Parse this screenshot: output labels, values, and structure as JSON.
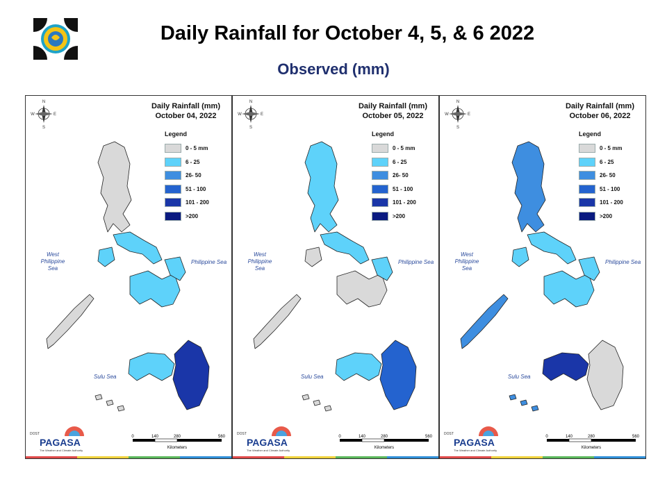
{
  "header": {
    "title": "Daily Rainfall for October 4, 5, & 6 2022",
    "subtitle": "Observed (mm)"
  },
  "legend": {
    "title": "Legend",
    "items": [
      {
        "label": "0 - 5 mm",
        "color": "#d9d9d9"
      },
      {
        "label": "6 - 25",
        "color": "#5ed2fa"
      },
      {
        "label": "26- 50",
        "color": "#3e8ee0"
      },
      {
        "label": "51 - 100",
        "color": "#2463cf"
      },
      {
        "label": "101 - 200",
        "color": "#1a36a8"
      },
      {
        "label": ">200",
        "color": "#0a1a80"
      }
    ]
  },
  "seas": {
    "west": "West Philippine Sea",
    "east": "Philippine Sea",
    "sulu": "Sulu Sea"
  },
  "compass": {
    "n": "N",
    "s": "S",
    "e": "E",
    "w": "W"
  },
  "scale": {
    "ticks": [
      "0",
      "140",
      "280",
      "560"
    ],
    "unit": "Kilometers"
  },
  "branding": {
    "agency": "PAGASA",
    "small": "DOST",
    "tagline": "The Weather and Climate Authority"
  },
  "panels": [
    {
      "title": "Daily Rainfall (mm)",
      "date": "October 04, 2022",
      "rain_levels": {
        "luzon": "0 - 5 mm",
        "bicol": "6 - 25",
        "visayas": "6 - 25",
        "mindanao_west": "6 - 25",
        "mindanao_east": "101 - 200",
        "palawan": "0 - 5 mm"
      }
    },
    {
      "title": "Daily Rainfall (mm)",
      "date": "October 05, 2022",
      "rain_levels": {
        "luzon": "6 - 25",
        "bicol": "6 - 25",
        "visayas": "0 - 5 mm",
        "mindanao_west": "6 - 25",
        "mindanao_east": "51 - 100",
        "palawan": "0 - 5 mm"
      }
    },
    {
      "title": "Daily Rainfall (mm)",
      "date": "October 06, 2022",
      "rain_levels": {
        "luzon": "26- 50",
        "bicol": "6 - 25",
        "visayas": "6 - 25",
        "mindanao_west": "101 - 200",
        "mindanao_east": "0 - 5 mm",
        "palawan": "26- 50"
      }
    }
  ]
}
